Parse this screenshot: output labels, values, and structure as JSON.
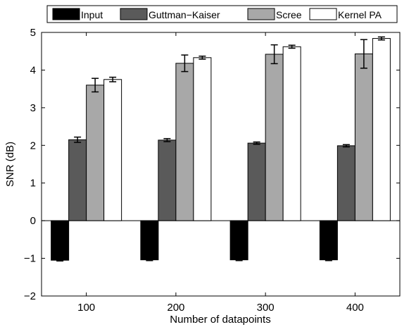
{
  "chart_data": {
    "type": "bar",
    "xlabel": "Number of datapoints",
    "ylabel": "SNR (dB)",
    "ylim": [
      -2,
      5
    ],
    "yticks": [
      -2,
      -1,
      0,
      1,
      2,
      3,
      4,
      5
    ],
    "grid": false,
    "legend_position": "top",
    "categories": [
      "100",
      "200",
      "300",
      "400"
    ],
    "series": [
      {
        "name": "Input",
        "color": "#000000",
        "values": [
          -1.05,
          -1.04,
          -1.04,
          -1.04
        ],
        "errors": [
          0.02,
          0.02,
          0.02,
          0.02
        ]
      },
      {
        "name": "Guttman−Kaiser",
        "color": "#5a5a5a",
        "values": [
          2.15,
          2.14,
          2.06,
          1.99
        ],
        "errors": [
          0.07,
          0.04,
          0.03,
          0.03
        ]
      },
      {
        "name": "Scree",
        "color": "#a8a8a8",
        "values": [
          3.6,
          4.18,
          4.42,
          4.43
        ],
        "errors": [
          0.18,
          0.22,
          0.25,
          0.38
        ]
      },
      {
        "name": "Kernel PA",
        "color": "#ffffff",
        "values": [
          3.75,
          4.33,
          4.62,
          4.84
        ],
        "errors": [
          0.06,
          0.04,
          0.04,
          0.04
        ]
      }
    ]
  }
}
